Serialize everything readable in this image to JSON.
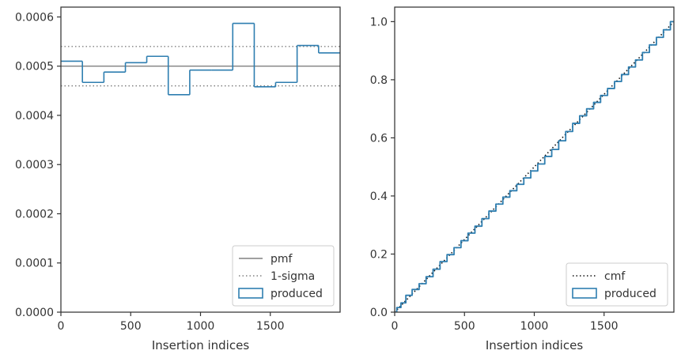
{
  "chart_data": [
    {
      "type": "histogram",
      "xlabel": "Insertion indices",
      "ylabel": "",
      "xlim": [
        0,
        2000
      ],
      "ylim": [
        0,
        0.00062
      ],
      "xticks": [
        0,
        500,
        1000,
        1500
      ],
      "xtick_labels": [
        "0",
        "500",
        "1000",
        "1500"
      ],
      "yticks": [
        0,
        0.0001,
        0.0002,
        0.0003,
        0.0004,
        0.0005,
        0.0006
      ],
      "ytick_labels": [
        "0.0000",
        "0.0001",
        "0.0002",
        "0.0003",
        "0.0004",
        "0.0005",
        "0.0006"
      ],
      "grid": false,
      "legend_position": "lower-right",
      "lines": [
        {
          "name": "pmf",
          "y": 0.0005,
          "style": "solid",
          "color": "#808080"
        },
        {
          "name": "1-sigma",
          "y": [
            0.00046,
            0.00054
          ],
          "style": "dotted",
          "color": "#808080"
        }
      ],
      "series": [
        {
          "name": "produced",
          "color": "#2e7eb0",
          "bin_edges": [
            0,
            154,
            308,
            462,
            615,
            769,
            923,
            1077,
            1231,
            1385,
            1538,
            1692,
            1846,
            2000
          ],
          "values": [
            0.00051,
            0.000467,
            0.000488,
            0.000507,
            0.00052,
            0.000442,
            0.000492,
            0.000492,
            0.000587,
            0.000458,
            0.000467,
            0.000542,
            0.000527
          ]
        }
      ]
    },
    {
      "type": "line",
      "xlabel": "Insertion indices",
      "ylabel": "",
      "xlim": [
        0,
        2000
      ],
      "ylim": [
        0,
        1.05
      ],
      "xticks": [
        0,
        500,
        1000,
        1500
      ],
      "xtick_labels": [
        "0",
        "500",
        "1000",
        "1500"
      ],
      "yticks": [
        0,
        0.2,
        0.4,
        0.6,
        0.8,
        1.0
      ],
      "ytick_labels": [
        "0.0",
        "0.2",
        "0.4",
        "0.6",
        "0.8",
        "1.0"
      ],
      "grid": false,
      "legend_position": "lower-right",
      "series": [
        {
          "name": "cmf",
          "style": "dotted",
          "color": "#111111",
          "x": [
            0,
            2000
          ],
          "y": [
            0,
            1.0
          ]
        },
        {
          "name": "produced",
          "style": "step",
          "color": "#2e7eb0",
          "x": [
            0,
            30,
            60,
            100,
            150,
            200,
            250,
            300,
            350,
            400,
            450,
            500,
            550,
            600,
            650,
            700,
            750,
            800,
            850,
            900,
            950,
            1000,
            1050,
            1100,
            1150,
            1200,
            1250,
            1300,
            1350,
            1400,
            1450,
            1500,
            1550,
            1600,
            1650,
            1700,
            1750,
            1800,
            1850,
            1900,
            1950,
            2000
          ],
          "y": [
            0,
            0.016,
            0.032,
            0.058,
            0.078,
            0.098,
            0.122,
            0.148,
            0.174,
            0.198,
            0.222,
            0.246,
            0.272,
            0.296,
            0.322,
            0.348,
            0.372,
            0.396,
            0.418,
            0.44,
            0.462,
            0.486,
            0.51,
            0.536,
            0.56,
            0.59,
            0.622,
            0.65,
            0.676,
            0.7,
            0.722,
            0.746,
            0.77,
            0.794,
            0.818,
            0.844,
            0.868,
            0.894,
            0.92,
            0.946,
            0.972,
            1.0
          ]
        }
      ]
    }
  ]
}
